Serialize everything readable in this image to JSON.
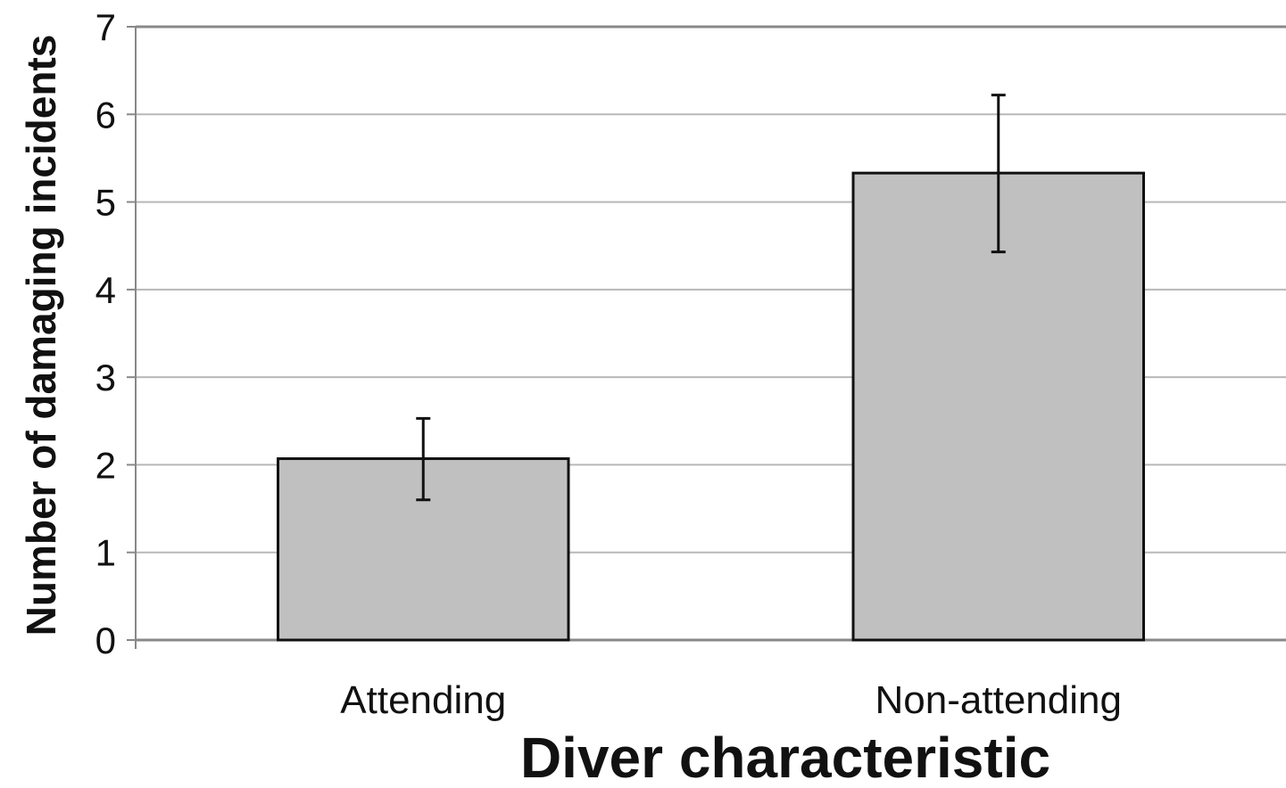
{
  "chart_data": {
    "type": "bar",
    "categories": [
      "Attending",
      "Non-attending"
    ],
    "values": [
      2.07,
      5.33
    ],
    "error_bars": {
      "lower": [
        1.6,
        4.43
      ],
      "upper": [
        2.53,
        6.22
      ]
    },
    "xlabel": "Diver characteristic",
    "ylabel": "Number of damaging incidents",
    "ylim": [
      0,
      7
    ],
    "yticks": [
      0,
      1,
      2,
      3,
      4,
      5,
      6,
      7
    ],
    "grid": true,
    "legend": "none",
    "colors": {
      "bar_fill": "#c0c0c0",
      "bar_stroke": "#111111",
      "grid": "#b8b8b8",
      "axis": "#888888",
      "error_bar": "#111111",
      "text": "#111111"
    }
  }
}
